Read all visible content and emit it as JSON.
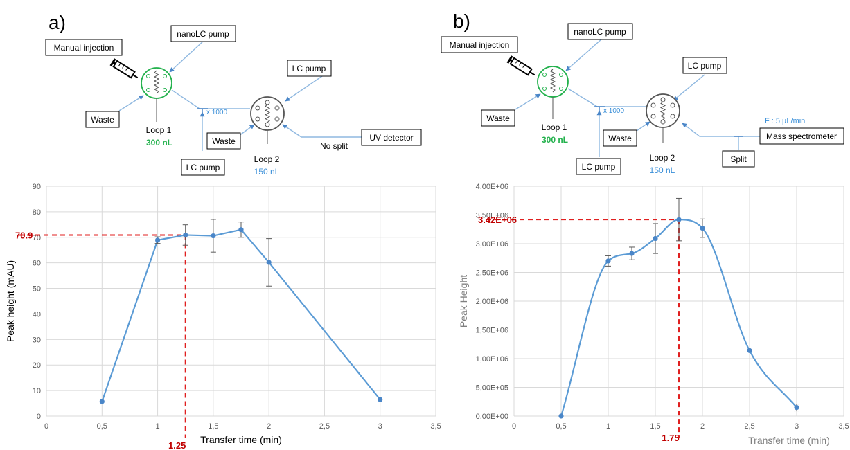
{
  "panels": [
    {
      "letter": "a)",
      "diagram": {
        "manual_injection": "Manual injection",
        "nanolc_pump": "nanoLC pump",
        "waste_left": "Waste",
        "loop1": "Loop 1",
        "loop1_volume": "300 nL",
        "splitter_ratio": "x 1000",
        "lc_pump_bottom": "LC pump",
        "waste_mid": "Waste",
        "loop2": "Loop 2",
        "loop2_volume": "150 nL",
        "lc_pump_top": "LC pump",
        "detector": "UV detector",
        "split_note": "No split"
      }
    },
    {
      "letter": "b)",
      "diagram": {
        "manual_injection": "Manual injection",
        "nanolc_pump": "nanoLC pump",
        "waste_left": "Waste",
        "loop1": "Loop 1",
        "loop1_volume": "300 nL",
        "splitter_ratio": "x 1000",
        "lc_pump_bottom": "LC pump",
        "waste_mid": "Waste",
        "loop2": "Loop 2",
        "loop2_volume": "150 nL",
        "lc_pump_top": "LC pump",
        "detector": "Mass spectrometer",
        "flow_note": "F : 5 µL/min",
        "split_box": "Split"
      }
    }
  ],
  "colors": {
    "line": "#5b9bd5",
    "marker": "#4a86c8",
    "highlight": "#e02020",
    "highlight_text": "#c00000",
    "grid": "#d9d9d9",
    "tick_text": "#595959",
    "loop1_green": "#22b14c",
    "loop2_blue": "#3a8fd8",
    "tube_blue": "#8fb8e0"
  },
  "chart_data": [
    {
      "type": "line",
      "xlabel": "Transfer time (min)",
      "ylabel": "Peak height (mAU)",
      "xlim": [
        0,
        3.5
      ],
      "ylim": [
        0,
        90
      ],
      "xticks": [
        "0",
        "0,5",
        "1",
        "1,5",
        "2",
        "2,5",
        "3",
        "3,5"
      ],
      "yticks": [
        "0",
        "10",
        "20",
        "30",
        "40",
        "50",
        "60",
        "70",
        "80",
        "90"
      ],
      "grid": true,
      "legend": "none",
      "series": [
        {
          "x": [
            0.5,
            1.0,
            1.25,
            1.5,
            1.75,
            2.0,
            3.0
          ],
          "y": [
            5.7,
            68.9,
            70.9,
            70.6,
            73.0,
            60.2,
            6.5
          ],
          "err": [
            0,
            1.3,
            4.0,
            6.4,
            3.0,
            9.3,
            0
          ]
        }
      ],
      "annotation": {
        "x": 1.25,
        "y": 70.9,
        "x_label": "1.25",
        "y_label": "70.9"
      }
    },
    {
      "type": "line",
      "xlabel": "Transfer time (min)",
      "ylabel": "Peak Height",
      "xlim": [
        0,
        3.5
      ],
      "ylim": [
        0,
        4000000
      ],
      "xticks": [
        "0",
        "0,5",
        "1",
        "1,5",
        "2",
        "2,5",
        "3",
        "3,5"
      ],
      "yticks": [
        "0,00E+00",
        "5,00E+05",
        "1,00E+06",
        "1,50E+06",
        "2,00E+06",
        "2,50E+06",
        "3,00E+06",
        "3,50E+06",
        "4,00E+06"
      ],
      "grid": true,
      "legend": "none",
      "series": [
        {
          "x": [
            0.5,
            1.0,
            1.25,
            1.5,
            1.75,
            2.0,
            2.5,
            3.0
          ],
          "y": [
            0,
            2700000,
            2830000,
            3090000,
            3420000,
            3270000,
            1140000,
            150000
          ],
          "err": [
            0,
            90000,
            110000,
            260000,
            370000,
            160000,
            20000,
            60000
          ]
        }
      ],
      "annotation": {
        "x": 1.75,
        "y": 3420000,
        "x_label": "1.75",
        "y_label": "3.42E+06"
      }
    }
  ]
}
